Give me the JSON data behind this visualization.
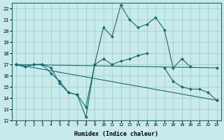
{
  "xlabel": "Humidex (Indice chaleur)",
  "background_color": "#c8eaea",
  "grid_color": "#9fc8c8",
  "line_color": "#1a6b6b",
  "xlim": [
    -0.5,
    23.5
  ],
  "ylim": [
    12,
    22.5
  ],
  "xticks": [
    0,
    1,
    2,
    3,
    4,
    5,
    6,
    7,
    8,
    9,
    10,
    11,
    12,
    13,
    14,
    15,
    16,
    17,
    18,
    19,
    20,
    21,
    22,
    23
  ],
  "yticks": [
    12,
    13,
    14,
    15,
    16,
    17,
    18,
    19,
    20,
    21,
    22
  ],
  "line1_x": [
    0,
    1,
    2,
    3,
    4,
    5,
    6,
    7,
    8,
    9,
    10,
    11,
    12,
    13,
    14,
    15,
    16,
    17,
    18,
    19,
    20
  ],
  "line1_y": [
    17,
    16.8,
    17,
    17,
    16.7,
    15.3,
    14.5,
    14.3,
    12.3,
    17,
    20.3,
    19.5,
    22.3,
    21,
    20.3,
    20.6,
    21.2,
    20.1,
    16.7,
    17.5,
    16.8
  ],
  "line2_x": [
    0,
    1,
    2,
    3,
    4,
    5,
    6,
    7,
    8,
    9,
    10,
    11,
    12,
    13,
    14,
    15
  ],
  "line2_y": [
    17,
    16.8,
    17,
    17,
    16.2,
    15.5,
    14.5,
    14.3,
    13.2,
    17.0,
    17.5,
    17.0,
    17.3,
    17.5,
    17.8,
    18.0
  ],
  "line3_x": [
    0,
    23
  ],
  "line3_y": [
    17,
    13.8
  ],
  "line4_x": [
    0,
    23
  ],
  "line4_y": [
    17,
    16.7
  ],
  "line5_x": [
    17,
    18,
    19,
    20,
    21,
    22,
    23
  ],
  "line5_y": [
    16.7,
    15.5,
    15.0,
    14.8,
    14.8,
    14.5,
    13.8
  ],
  "marker_size": 2.5
}
